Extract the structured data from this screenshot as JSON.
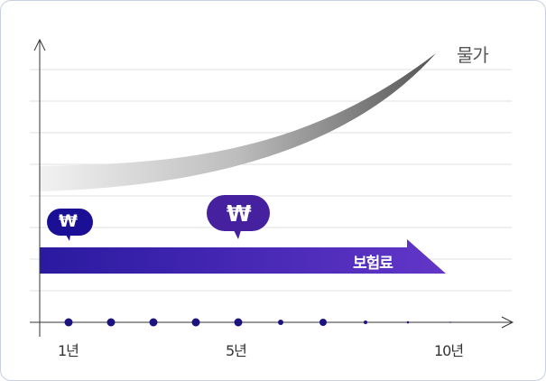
{
  "labels": {
    "price": "물가",
    "premium": "보험료",
    "won_symbol": "₩"
  },
  "x_ticks": [
    "1년",
    "5년",
    "10년"
  ],
  "colors": {
    "premium_start": "#2a1aa0",
    "premium_end": "#6236c8",
    "bubble_small": "#1a0f95",
    "bubble_large": "#45209f",
    "dot": "#1a1380",
    "grid": "#e2e2e2"
  }
}
